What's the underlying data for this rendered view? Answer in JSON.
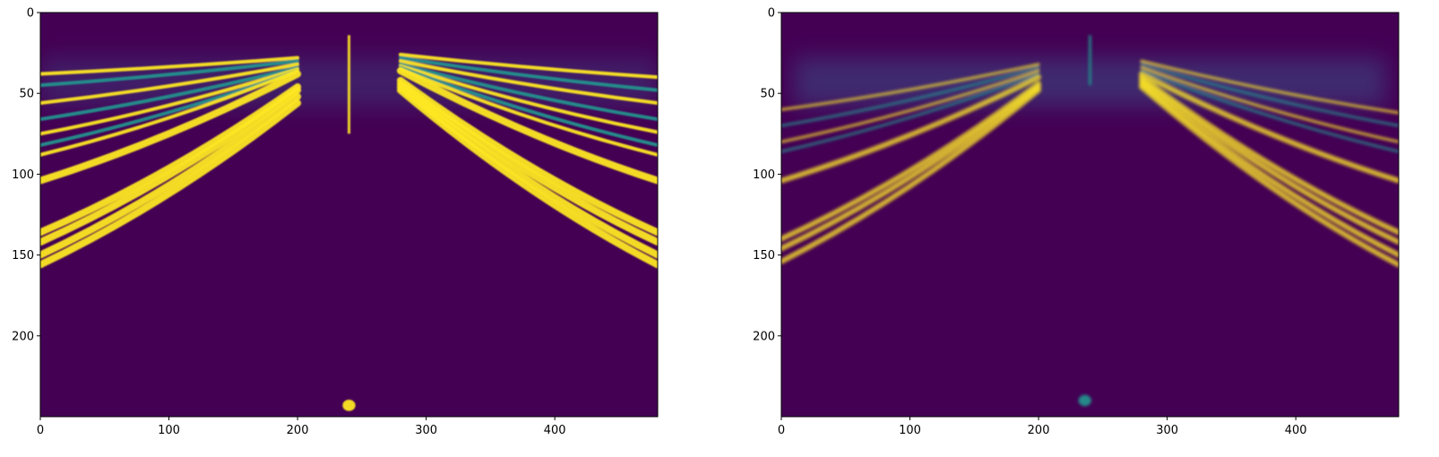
{
  "chart_data": [
    {
      "type": "heatmap",
      "title": "",
      "xlabel": "",
      "ylabel": "",
      "image_width": 480,
      "image_height": 250,
      "xlim": [
        0,
        480
      ],
      "ylim": [
        250,
        0
      ],
      "x_ticks": [
        0,
        100,
        200,
        300,
        400
      ],
      "y_ticks": [
        0,
        50,
        100,
        150,
        200
      ],
      "grid": false,
      "colormap": "viridis",
      "colors": {
        "background": "#440154",
        "high": "#fde725",
        "mid": "#21918c",
        "low_glow": "#3b528b"
      },
      "description_bands": {
        "left_bands_row_at_x0": [
          38,
          45,
          56,
          66,
          75,
          82,
          88,
          104,
          136,
          142,
          150,
          156
        ],
        "left_bands_row_at_x200": [
          28,
          30,
          32,
          34,
          35,
          36,
          36,
          38,
          46,
          48,
          52,
          56
        ],
        "right_bands_row_at_x480": [
          40,
          48,
          56,
          66,
          74,
          82,
          88,
          104,
          136,
          142,
          150,
          156
        ],
        "right_bands_row_at_x280": [
          26,
          28,
          30,
          32,
          33,
          34,
          35,
          36,
          42,
          44,
          46,
          48
        ],
        "center_streak_x": 240,
        "center_streak_rows": [
          14,
          75
        ],
        "bottom_blob": {
          "x": 240,
          "y": 243
        }
      }
    },
    {
      "type": "heatmap",
      "title": "",
      "xlabel": "",
      "ylabel": "",
      "image_width": 480,
      "image_height": 250,
      "xlim": [
        0,
        480
      ],
      "ylim": [
        250,
        0
      ],
      "x_ticks": [
        0,
        100,
        200,
        300,
        400
      ],
      "y_ticks": [
        0,
        50,
        100,
        150,
        200
      ],
      "grid": false,
      "colormap": "viridis",
      "colors": {
        "background": "#440154",
        "high": "#fde725",
        "mid": "#21918c",
        "low_glow": "#3b528b"
      },
      "description_bands": {
        "left_bands_row_at_x0": [
          60,
          70,
          80,
          86,
          104,
          140,
          146,
          154
        ],
        "left_bands_row_at_x200": [
          32,
          34,
          36,
          38,
          40,
          44,
          46,
          48
        ],
        "right_bands_row_at_x480": [
          62,
          70,
          80,
          86,
          104,
          136,
          142,
          150,
          156
        ],
        "right_bands_row_at_x280": [
          30,
          32,
          34,
          36,
          38,
          40,
          42,
          44,
          46
        ],
        "center_streak_x": 240,
        "center_streak_rows": [
          14,
          45
        ],
        "bottom_blob": {
          "x": 236,
          "y": 240
        }
      }
    }
  ]
}
